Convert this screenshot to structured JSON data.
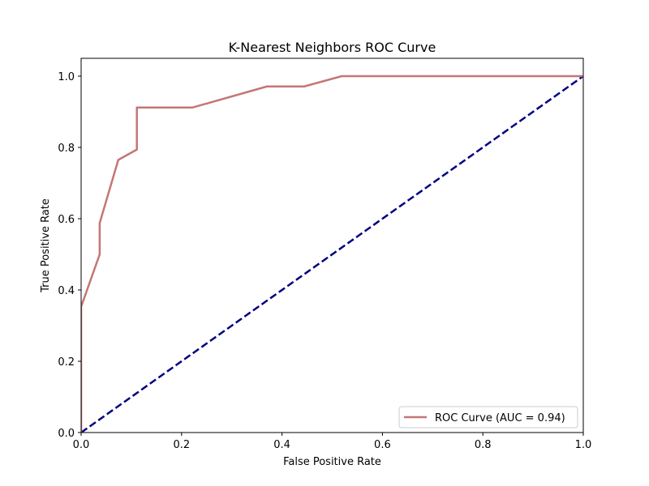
{
  "chart_data": {
    "type": "line",
    "title": "K-Nearest Neighbors ROC Curve",
    "xlabel": "False Positive Rate",
    "ylabel": "True Positive Rate",
    "xlim": [
      0.0,
      1.0
    ],
    "ylim": [
      0.0,
      1.05
    ],
    "xticks": [
      "0.0",
      "0.2",
      "0.4",
      "0.6",
      "0.8",
      "1.0"
    ],
    "yticks": [
      "0.0",
      "0.2",
      "0.4",
      "0.6",
      "0.8",
      "1.0"
    ],
    "grid": false,
    "legend_position": "lower-right",
    "series": [
      {
        "name": "ROC Curve (AUC = 0.94)",
        "color": "#c47676",
        "style": "solid",
        "x": [
          0.0,
          0.0,
          0.0,
          0.037,
          0.037,
          0.037,
          0.074,
          0.111,
          0.111,
          0.222,
          0.37,
          0.444,
          0.519,
          1.0
        ],
        "y": [
          0.0,
          0.353,
          0.353,
          0.5,
          0.5,
          0.588,
          0.765,
          0.794,
          0.912,
          0.912,
          0.971,
          0.971,
          1.0,
          1.0
        ]
      },
      {
        "color": "#000080",
        "style": "dashed",
        "x": [
          0.0,
          1.0
        ],
        "y": [
          0.0,
          1.0
        ]
      }
    ]
  }
}
